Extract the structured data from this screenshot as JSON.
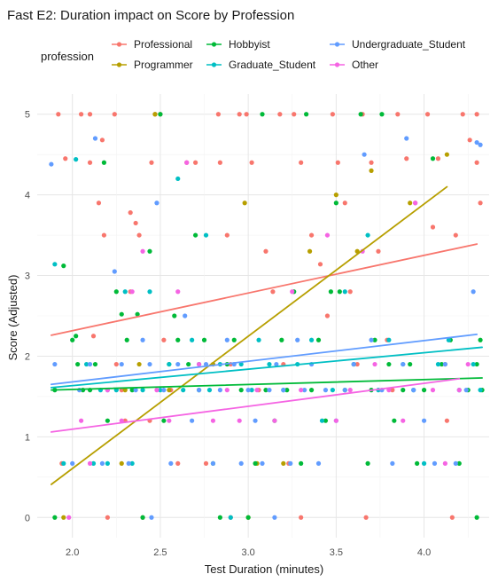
{
  "chart_data": {
    "type": "scatter",
    "title": "Fast E2: Duration impact on Score by Profession",
    "xlabel": "Test Duration (minutes)",
    "ylabel": "Score (Adjusted)",
    "xlim": [
      1.8,
      4.37
    ],
    "ylim": [
      -0.25,
      5.25
    ],
    "x_ticks": [
      2.0,
      2.5,
      3.0,
      3.5,
      4.0
    ],
    "x_tick_labels": [
      "2.0",
      "2.5",
      "3.0",
      "3.5",
      "4.0"
    ],
    "y_ticks": [
      0,
      1,
      2,
      3,
      4,
      5
    ],
    "y_tick_labels": [
      "0",
      "1",
      "2",
      "3",
      "4",
      "5"
    ],
    "grid": true,
    "legend": {
      "title": "profession",
      "placement": "top"
    },
    "series": [
      {
        "name": "Professional",
        "color": "#F8766D",
        "trend": [
          [
            1.88,
            2.26
          ],
          [
            4.3,
            3.39
          ]
        ],
        "points": [
          [
            1.92,
            5
          ],
          [
            1.96,
            4.45
          ],
          [
            2.05,
            5
          ],
          [
            2.1,
            5
          ],
          [
            2.1,
            4.4
          ],
          [
            2.17,
            4.68
          ],
          [
            2.18,
            3.5
          ],
          [
            2.15,
            3.9
          ],
          [
            2.12,
            2.25
          ],
          [
            2.24,
            5
          ],
          [
            2.25,
            1.9
          ],
          [
            2.28,
            1.58
          ],
          [
            2.3,
            1.2
          ],
          [
            2.33,
            3.78
          ],
          [
            2.33,
            2.8
          ],
          [
            2.36,
            3.65
          ],
          [
            2.38,
            3.5
          ],
          [
            2.45,
            4.4
          ],
          [
            2.47,
            5
          ],
          [
            2.5,
            5
          ],
          [
            2.52,
            2.2
          ],
          [
            2.56,
            1.58
          ],
          [
            2.6,
            0.67
          ],
          [
            2.65,
            4.4
          ],
          [
            2.7,
            4.4
          ],
          [
            2.72,
            1.9
          ],
          [
            2.76,
            0.67
          ],
          [
            2.83,
            5
          ],
          [
            2.84,
            4.4
          ],
          [
            2.88,
            3.5
          ],
          [
            2.9,
            1.9
          ],
          [
            2.95,
            5
          ],
          [
            2.99,
            5
          ],
          [
            3.02,
            4.4
          ],
          [
            3.06,
            1.58
          ],
          [
            3.1,
            3.3
          ],
          [
            3.14,
            2.8
          ],
          [
            3.18,
            5
          ],
          [
            3.2,
            1.9
          ],
          [
            3.23,
            0.67
          ],
          [
            3.26,
            5
          ],
          [
            3.3,
            4.4
          ],
          [
            3.36,
            3.5
          ],
          [
            3.41,
            3.14
          ],
          [
            3.45,
            2.5
          ],
          [
            3.48,
            5
          ],
          [
            3.51,
            4.4
          ],
          [
            3.55,
            3.9
          ],
          [
            3.58,
            2.8
          ],
          [
            3.62,
            1.9
          ],
          [
            3.65,
            5
          ],
          [
            3.7,
            4.4
          ],
          [
            3.74,
            3.3
          ],
          [
            3.79,
            2.2
          ],
          [
            3.82,
            1.58
          ],
          [
            3.85,
            5
          ],
          [
            3.9,
            4.45
          ],
          [
            3.95,
            3.9
          ],
          [
            4.02,
            5
          ],
          [
            4.05,
            3.6
          ],
          [
            4.08,
            4.45
          ],
          [
            4.13,
            1.2
          ],
          [
            4.18,
            3.5
          ],
          [
            4.22,
            5
          ],
          [
            4.26,
            4.68
          ],
          [
            4.3,
            4.4
          ],
          [
            4.3,
            5
          ],
          [
            4.32,
            3.9
          ],
          [
            4.16,
            0
          ],
          [
            2.2,
            0
          ],
          [
            2.4,
            0
          ],
          [
            2.9,
            0
          ],
          [
            3.3,
            0
          ],
          [
            3.67,
            0
          ],
          [
            1.94,
            0.67
          ],
          [
            2.44,
            1.2
          ]
        ]
      },
      {
        "name": "Programmer",
        "color": "#B79F00",
        "trend": [
          [
            1.88,
            0.41
          ],
          [
            4.13,
            4.1
          ]
        ],
        "points": [
          [
            1.95,
            0
          ],
          [
            2.28,
            0.67
          ],
          [
            2.3,
            1.58
          ],
          [
            2.38,
            1.9
          ],
          [
            2.47,
            5
          ],
          [
            2.55,
            1.58
          ],
          [
            2.8,
            1.9
          ],
          [
            2.98,
            3.9
          ],
          [
            3.05,
            0.67
          ],
          [
            3.2,
            0.67
          ],
          [
            3.35,
            3.3
          ],
          [
            3.5,
            4
          ],
          [
            3.62,
            3.3
          ],
          [
            3.7,
            4.3
          ],
          [
            3.92,
            3.9
          ],
          [
            4.13,
            4.5
          ],
          [
            4.12,
            1.9
          ],
          [
            3.0,
            0
          ]
        ]
      },
      {
        "name": "Hobbyist",
        "color": "#00BA38",
        "trend": [
          [
            1.88,
            1.58
          ],
          [
            4.33,
            1.73
          ]
        ],
        "points": [
          [
            1.9,
            1.58
          ],
          [
            1.95,
            3.12
          ],
          [
            1.9,
            0
          ],
          [
            2.0,
            2.2
          ],
          [
            2.02,
            2.25
          ],
          [
            2.03,
            1.9
          ],
          [
            2.06,
            1.58
          ],
          [
            2.1,
            1.58
          ],
          [
            2.13,
            1.9
          ],
          [
            2.18,
            4.4
          ],
          [
            2.2,
            1.2
          ],
          [
            2.25,
            2.8
          ],
          [
            2.28,
            2.52
          ],
          [
            2.31,
            2.2
          ],
          [
            2.34,
            1.58
          ],
          [
            2.37,
            2.52
          ],
          [
            2.4,
            0
          ],
          [
            2.44,
            3.3
          ],
          [
            2.5,
            5
          ],
          [
            2.52,
            1.2
          ],
          [
            2.55,
            1.9
          ],
          [
            2.58,
            2.5
          ],
          [
            2.6,
            2.2
          ],
          [
            2.66,
            1.9
          ],
          [
            2.7,
            3.5
          ],
          [
            2.72,
            1.58
          ],
          [
            2.75,
            2.2
          ],
          [
            2.8,
            0.67
          ],
          [
            2.84,
            0
          ],
          [
            2.88,
            1.9
          ],
          [
            2.92,
            2.2
          ],
          [
            2.96,
            1.58
          ],
          [
            3.0,
            0
          ],
          [
            3.04,
            0.67
          ],
          [
            3.08,
            5
          ],
          [
            3.1,
            1.58
          ],
          [
            3.15,
            1.2
          ],
          [
            3.19,
            2.2
          ],
          [
            3.22,
            1.58
          ],
          [
            3.26,
            2.8
          ],
          [
            3.3,
            0.67
          ],
          [
            3.33,
            5
          ],
          [
            3.36,
            1.58
          ],
          [
            3.4,
            2.2
          ],
          [
            3.44,
            1.2
          ],
          [
            3.47,
            2.8
          ],
          [
            3.5,
            3.9
          ],
          [
            3.52,
            2.8
          ],
          [
            3.55,
            1.58
          ],
          [
            3.6,
            1.9
          ],
          [
            3.64,
            5
          ],
          [
            3.68,
            0.67
          ],
          [
            3.7,
            1.58
          ],
          [
            3.72,
            2.2
          ],
          [
            3.76,
            5
          ],
          [
            3.8,
            1.9
          ],
          [
            3.83,
            1.2
          ],
          [
            3.88,
            1.58
          ],
          [
            3.92,
            1.9
          ],
          [
            3.96,
            0.67
          ],
          [
            4.0,
            1.58
          ],
          [
            4.05,
            4.45
          ],
          [
            4.1,
            1.9
          ],
          [
            4.15,
            2.2
          ],
          [
            4.2,
            0.67
          ],
          [
            4.25,
            1.58
          ],
          [
            4.3,
            1.9
          ],
          [
            4.32,
            2.2
          ],
          [
            4.33,
            1.58
          ],
          [
            4.3,
            0
          ]
        ]
      },
      {
        "name": "Graduate_Student",
        "color": "#00BFC4",
        "trend": [
          [
            1.88,
            1.61
          ],
          [
            4.33,
            2.11
          ]
        ],
        "points": [
          [
            1.9,
            3.14
          ],
          [
            1.95,
            0.67
          ],
          [
            2.02,
            4.44
          ],
          [
            2.08,
            1.9
          ],
          [
            2.12,
            0.67
          ],
          [
            2.16,
            1.58
          ],
          [
            2.2,
            0.67
          ],
          [
            2.25,
            1.58
          ],
          [
            2.3,
            2.8
          ],
          [
            2.34,
            0.67
          ],
          [
            2.4,
            1.58
          ],
          [
            2.44,
            2.8
          ],
          [
            2.5,
            1.58
          ],
          [
            2.55,
            1.9
          ],
          [
            2.6,
            4.2
          ],
          [
            2.63,
            1.58
          ],
          [
            2.68,
            2.2
          ],
          [
            2.72,
            1.9
          ],
          [
            2.76,
            3.5
          ],
          [
            2.78,
            1.58
          ],
          [
            2.84,
            1.9
          ],
          [
            2.9,
            0
          ],
          [
            2.96,
            1.9
          ],
          [
            3.02,
            1.58
          ],
          [
            3.06,
            2.2
          ],
          [
            3.12,
            1.9
          ],
          [
            3.2,
            1.58
          ],
          [
            3.28,
            1.9
          ],
          [
            3.36,
            2.2
          ],
          [
            3.42,
            1.2
          ],
          [
            3.48,
            1.58
          ],
          [
            3.55,
            2.8
          ],
          [
            3.6,
            1.9
          ],
          [
            3.68,
            3.5
          ],
          [
            3.74,
            1.58
          ],
          [
            3.8,
            2.2
          ],
          [
            3.88,
            1.9
          ],
          [
            3.94,
            1.58
          ],
          [
            4.0,
            0.67
          ],
          [
            4.08,
            1.9
          ],
          [
            4.14,
            2.2
          ],
          [
            4.2,
            1.58
          ],
          [
            4.28,
            1.9
          ],
          [
            4.32,
            1.58
          ]
        ]
      },
      {
        "name": "Undergraduate_Student",
        "color": "#619CFF",
        "trend": [
          [
            1.88,
            1.65
          ],
          [
            4.3,
            2.27
          ]
        ],
        "points": [
          [
            1.88,
            4.38
          ],
          [
            1.9,
            1.9
          ],
          [
            2.0,
            0.67
          ],
          [
            2.04,
            1.58
          ],
          [
            2.1,
            1.9
          ],
          [
            2.13,
            4.7
          ],
          [
            2.17,
            0.67
          ],
          [
            2.2,
            1.58
          ],
          [
            2.24,
            3.05
          ],
          [
            2.28,
            1.9
          ],
          [
            2.32,
            0.67
          ],
          [
            2.36,
            1.58
          ],
          [
            2.4,
            2.2
          ],
          [
            2.44,
            1.9
          ],
          [
            2.48,
            3.9
          ],
          [
            2.52,
            1.58
          ],
          [
            2.56,
            0.67
          ],
          [
            2.6,
            1.9
          ],
          [
            2.64,
            2.5
          ],
          [
            2.68,
            1.2
          ],
          [
            2.72,
            1.58
          ],
          [
            2.76,
            1.9
          ],
          [
            2.8,
            0.67
          ],
          [
            2.84,
            1.58
          ],
          [
            2.88,
            2.2
          ],
          [
            2.92,
            1.9
          ],
          [
            2.96,
            0.67
          ],
          [
            3.0,
            1.58
          ],
          [
            3.04,
            1.2
          ],
          [
            3.08,
            0.67
          ],
          [
            3.12,
            1.58
          ],
          [
            3.16,
            1.9
          ],
          [
            3.2,
            1.58
          ],
          [
            3.24,
            0.67
          ],
          [
            3.28,
            2.2
          ],
          [
            3.32,
            1.58
          ],
          [
            3.36,
            1.9
          ],
          [
            3.4,
            0.67
          ],
          [
            3.44,
            1.58
          ],
          [
            3.5,
            1.2
          ],
          [
            3.55,
            1.58
          ],
          [
            3.6,
            1.9
          ],
          [
            3.66,
            4.5
          ],
          [
            3.7,
            2.2
          ],
          [
            3.76,
            1.58
          ],
          [
            3.82,
            0.67
          ],
          [
            3.88,
            1.9
          ],
          [
            3.94,
            1.58
          ],
          [
            4.0,
            1.2
          ],
          [
            4.06,
            0.67
          ],
          [
            4.12,
            1.9
          ],
          [
            4.18,
            0.67
          ],
          [
            4.24,
            1.58
          ],
          [
            4.28,
            2.8
          ],
          [
            4.3,
            4.65
          ],
          [
            4.32,
            4.62
          ],
          [
            3.9,
            4.7
          ],
          [
            2.45,
            0
          ],
          [
            3.15,
            0
          ]
        ]
      },
      {
        "name": "Other",
        "color": "#F564E3",
        "trend": [
          [
            1.88,
            1.06
          ],
          [
            4.2,
            1.72
          ]
        ],
        "points": [
          [
            1.98,
            0
          ],
          [
            2.05,
            1.2
          ],
          [
            2.1,
            0.67
          ],
          [
            2.2,
            1.58
          ],
          [
            2.28,
            1.2
          ],
          [
            2.34,
            2.8
          ],
          [
            2.4,
            3.3
          ],
          [
            2.48,
            1.58
          ],
          [
            2.55,
            1.2
          ],
          [
            2.6,
            2.8
          ],
          [
            2.65,
            4.4
          ],
          [
            2.72,
            1.9
          ],
          [
            2.8,
            1.2
          ],
          [
            2.88,
            1.58
          ],
          [
            2.95,
            1.2
          ],
          [
            3.05,
            1.58
          ],
          [
            3.15,
            1.2
          ],
          [
            3.25,
            2.8
          ],
          [
            3.3,
            1.58
          ],
          [
            3.45,
            3.5
          ],
          [
            3.5,
            1.2
          ],
          [
            3.58,
            1.58
          ],
          [
            3.65,
            3.3
          ],
          [
            3.72,
            1.9
          ],
          [
            3.8,
            1.58
          ],
          [
            3.88,
            1.2
          ],
          [
            3.95,
            3.9
          ],
          [
            4.05,
            1.58
          ],
          [
            4.12,
            0.67
          ],
          [
            4.2,
            1.58
          ],
          [
            4.25,
            1.9
          ]
        ]
      }
    ]
  }
}
